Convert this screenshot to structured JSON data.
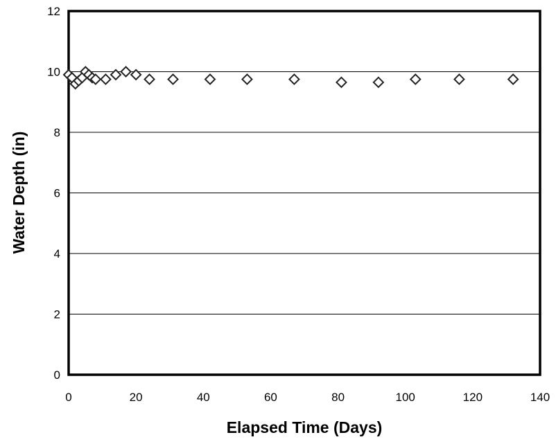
{
  "chart_data": {
    "type": "scatter",
    "title": "",
    "xlabel": "Elapsed Time (Days)",
    "ylabel": "Water Depth (in)",
    "xlim": [
      0,
      140
    ],
    "ylim": [
      0,
      12
    ],
    "xticks": [
      0,
      20,
      40,
      60,
      80,
      100,
      120,
      140
    ],
    "yticks": [
      0,
      2,
      4,
      6,
      8,
      10,
      12
    ],
    "xtick_labels": [
      "0",
      "20",
      "40",
      "60",
      "80",
      "100",
      "120",
      "140"
    ],
    "ytick_labels": [
      "0",
      "2",
      "4",
      "6",
      "8",
      "10",
      "12"
    ],
    "grid": "horizontal",
    "legend": "none",
    "marker": "diamond",
    "marker_color": "#222222",
    "series": [
      {
        "x": [
          0,
          1,
          2,
          3,
          4,
          5,
          6,
          7,
          8,
          11,
          14,
          17,
          20,
          24,
          31,
          42,
          53,
          67,
          81,
          92,
          103,
          116,
          132
        ],
        "y": [
          9.9,
          9.8,
          9.6,
          9.7,
          9.8,
          10.0,
          9.9,
          9.8,
          9.75,
          9.75,
          9.9,
          10.0,
          9.9,
          9.75,
          9.75,
          9.75,
          9.75,
          9.75,
          9.65,
          9.65,
          9.75,
          9.75,
          9.75
        ]
      }
    ]
  }
}
